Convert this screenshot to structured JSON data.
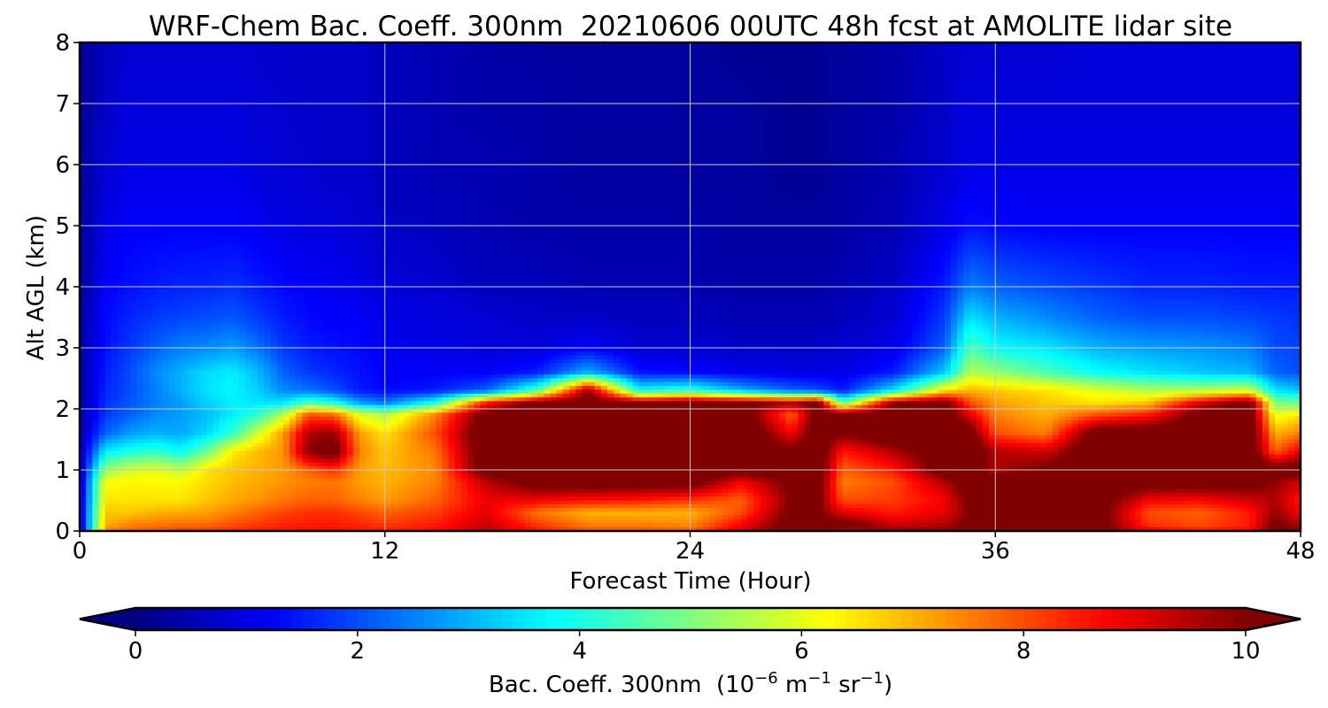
{
  "chart_data": {
    "type": "heatmap",
    "subtype": "filled-contour time-height cross section",
    "title": "WRF-Chem Bac. Coeff. 300nm  20210606 00UTC 48h fcst at AMOLITE lidar site",
    "xlabel": "Forecast Time (Hour)",
    "ylabel": "Alt AGL (km)",
    "xlim": [
      0,
      48
    ],
    "ylim": [
      0,
      8
    ],
    "x_ticks": [
      0,
      12,
      24,
      36,
      48
    ],
    "y_ticks": [
      0,
      1,
      2,
      3,
      4,
      5,
      6,
      7,
      8
    ],
    "grid": true,
    "colormap": "jet",
    "colorbar": {
      "orientation": "horizontal",
      "position": "bottom",
      "vmin": 0,
      "vmax": 10,
      "extend": "both",
      "ticks": [
        0,
        2,
        4,
        6,
        8,
        10
      ],
      "label_main": "Bac. Coeff. 300nm  (10",
      "label_exp1": "−6",
      "label_mid": " m",
      "label_exp2": "−1",
      "label_mid2": " sr",
      "label_exp3": "−1",
      "label_end": ")"
    },
    "z_units_note": "values in 10^-6 m^-1 sr^-1",
    "times": [
      0,
      1,
      2,
      3,
      4,
      5,
      6,
      7,
      8,
      9,
      10,
      11,
      12,
      14,
      16,
      18,
      20,
      22,
      24,
      26,
      28,
      29,
      30,
      32,
      34,
      35,
      36,
      38,
      40,
      42,
      44,
      46,
      47,
      48
    ],
    "altitudes": [
      0,
      0.1,
      0.3,
      0.5,
      0.8,
      1.0,
      1.3,
      1.6,
      1.9,
      2.1,
      2.3,
      2.6,
      3.0,
      3.5,
      4.0,
      5.0,
      6.0,
      7.0,
      8.0
    ],
    "values": [
      [
        0.5,
        0.6,
        0.6,
        0.6,
        0.5,
        0.4,
        0.4,
        0.4,
        0.3,
        0.3,
        0.3,
        0.3,
        0.3,
        0.3,
        0.2,
        0.2,
        0.2,
        0.2,
        0.2
      ],
      [
        7.5,
        7.0,
        6.8,
        6.5,
        6.2,
        5.2,
        3.6,
        2.2,
        1.8,
        1.7,
        1.6,
        1.5,
        1.4,
        1.3,
        1.2,
        1.0,
        0.8,
        0.7,
        0.6
      ],
      [
        7.8,
        7.5,
        6.8,
        6.5,
        6.3,
        5.8,
        4.0,
        2.8,
        2.2,
        2.1,
        2.0,
        2.0,
        1.8,
        1.6,
        1.4,
        1.2,
        1.0,
        0.9,
        0.8
      ],
      [
        8.0,
        7.6,
        7.0,
        6.5,
        6.3,
        6.0,
        4.2,
        3.0,
        2.6,
        2.5,
        2.5,
        2.6,
        2.2,
        1.8,
        1.5,
        1.2,
        1.0,
        0.9,
        0.8
      ],
      [
        8.2,
        7.7,
        7.1,
        6.5,
        6.3,
        5.6,
        3.8,
        2.9,
        2.8,
        2.8,
        3.0,
        3.0,
        2.5,
        1.9,
        1.6,
        1.2,
        1.0,
        0.9,
        0.8
      ],
      [
        8.2,
        7.7,
        7.2,
        6.8,
        6.6,
        6.5,
        4.8,
        3.4,
        3.1,
        3.3,
        3.5,
        3.4,
        2.6,
        2.0,
        1.6,
        1.2,
        1.0,
        0.9,
        0.8
      ],
      [
        8.4,
        8.0,
        7.5,
        7.1,
        6.9,
        6.8,
        6.4,
        4.2,
        3.6,
        3.6,
        3.7,
        3.6,
        2.8,
        2.1,
        1.7,
        1.2,
        1.0,
        0.9,
        0.8
      ],
      [
        8.5,
        8.2,
        7.8,
        7.3,
        7.1,
        7.0,
        6.9,
        5.8,
        4.2,
        3.5,
        3.3,
        3.1,
        2.4,
        1.8,
        1.5,
        1.1,
        0.9,
        0.8,
        0.8
      ],
      [
        8.6,
        8.4,
        8.1,
        7.6,
        7.3,
        7.2,
        7.3,
        7.2,
        5.5,
        3.5,
        2.6,
        2.2,
        1.8,
        1.5,
        1.3,
        1.0,
        0.8,
        0.8,
        0.7
      ],
      [
        8.7,
        8.5,
        8.3,
        7.8,
        7.5,
        7.8,
        9.9,
        9.5,
        8.0,
        4.5,
        2.4,
        1.8,
        1.5,
        1.3,
        1.2,
        0.9,
        0.8,
        0.7,
        0.7
      ],
      [
        8.7,
        8.5,
        8.3,
        7.8,
        7.6,
        8.3,
        10.5,
        9.8,
        7.8,
        4.0,
        2.0,
        1.6,
        1.4,
        1.2,
        1.1,
        0.9,
        0.7,
        0.7,
        0.7
      ],
      [
        8.6,
        8.4,
        8.1,
        7.5,
        7.2,
        7.2,
        7.5,
        7.2,
        6.0,
        2.8,
        1.5,
        1.4,
        1.3,
        1.2,
        1.0,
        0.8,
        0.7,
        0.7,
        0.7
      ],
      [
        8.5,
        8.2,
        7.8,
        7.2,
        7.0,
        6.9,
        6.8,
        6.5,
        5.5,
        2.4,
        1.3,
        1.2,
        1.1,
        1.0,
        0.9,
        0.7,
        0.6,
        0.6,
        0.6
      ],
      [
        8.7,
        8.5,
        8.2,
        7.8,
        7.5,
        7.4,
        7.6,
        8.0,
        7.5,
        4.0,
        1.5,
        1.2,
        1.0,
        0.9,
        0.8,
        0.6,
        0.5,
        0.5,
        0.5
      ],
      [
        9.5,
        9.3,
        9.0,
        8.9,
        9.4,
        10.5,
        10.8,
        10.8,
        10.5,
        8.5,
        2.2,
        1.2,
        0.9,
        0.8,
        0.6,
        0.5,
        0.5,
        0.4,
        0.4
      ],
      [
        8.6,
        8.2,
        7.6,
        8.8,
        10.5,
        10.8,
        11.0,
        11.0,
        10.8,
        10.2,
        4.5,
        1.5,
        0.9,
        0.7,
        0.6,
        0.4,
        0.4,
        0.4,
        0.3
      ],
      [
        8.0,
        7.5,
        7.0,
        8.6,
        10.5,
        10.8,
        11.0,
        11.0,
        10.9,
        10.5,
        9.8,
        3.0,
        1.2,
        0.7,
        0.5,
        0.4,
        0.3,
        0.3,
        0.3
      ],
      [
        8.0,
        7.5,
        7.0,
        8.5,
        10.5,
        10.8,
        11.0,
        11.0,
        10.8,
        10.0,
        3.8,
        1.4,
        0.8,
        0.6,
        0.5,
        0.4,
        0.3,
        0.3,
        0.3
      ],
      [
        7.9,
        7.4,
        7.0,
        8.2,
        10.5,
        10.8,
        11.0,
        11.0,
        10.8,
        10.4,
        4.2,
        1.3,
        0.8,
        0.6,
        0.5,
        0.4,
        0.3,
        0.3,
        0.3
      ],
      [
        9.2,
        8.8,
        8.0,
        7.8,
        8.8,
        10.5,
        11.0,
        11.0,
        10.7,
        10.2,
        3.0,
        1.1,
        0.7,
        0.5,
        0.4,
        0.3,
        0.3,
        0.3,
        0.2
      ],
      [
        10.5,
        10.4,
        10.2,
        10.0,
        10.2,
        10.5,
        10.2,
        8.8,
        7.8,
        9.5,
        2.2,
        1.0,
        0.7,
        0.5,
        0.4,
        0.3,
        0.2,
        0.2,
        0.2
      ],
      [
        10.5,
        10.4,
        10.2,
        10.2,
        10.5,
        10.8,
        10.8,
        10.6,
        10.4,
        10.3,
        2.0,
        1.0,
        0.7,
        0.5,
        0.4,
        0.3,
        0.2,
        0.2,
        0.2
      ],
      [
        9.5,
        10.5,
        9.0,
        8.0,
        7.5,
        7.8,
        8.5,
        10.0,
        10.5,
        4.5,
        1.5,
        1.0,
        0.8,
        0.6,
        0.5,
        0.4,
        0.3,
        0.3,
        0.3
      ],
      [
        10.0,
        9.2,
        8.5,
        8.2,
        8.0,
        8.5,
        9.5,
        10.8,
        10.8,
        9.8,
        3.5,
        1.5,
        1.0,
        0.8,
        0.7,
        0.5,
        0.5,
        0.4,
        0.4
      ],
      [
        10.0,
        9.5,
        9.0,
        8.8,
        9.5,
        10.5,
        10.8,
        10.8,
        10.6,
        10.3,
        6.5,
        3.2,
        2.2,
        1.8,
        1.5,
        1.0,
        0.8,
        0.7,
        0.7
      ],
      [
        10.5,
        10.2,
        10.0,
        10.2,
        10.5,
        10.7,
        10.8,
        10.5,
        9.0,
        8.0,
        7.0,
        5.5,
        4.5,
        3.5,
        2.5,
        1.4,
        1.0,
        0.9,
        0.8
      ],
      [
        10.5,
        10.5,
        10.5,
        10.6,
        10.5,
        9.5,
        9.5,
        8.0,
        7.5,
        7.2,
        6.8,
        5.2,
        3.8,
        3.0,
        2.2,
        1.3,
        1.0,
        0.9,
        0.8
      ],
      [
        10.5,
        10.5,
        10.5,
        10.6,
        10.5,
        10.2,
        9.2,
        7.5,
        7.0,
        6.8,
        6.5,
        4.5,
        3.5,
        2.6,
        2.0,
        1.2,
        1.0,
        0.9,
        0.8
      ],
      [
        10.5,
        10.5,
        10.5,
        10.6,
        10.8,
        10.9,
        10.8,
        10.6,
        8.0,
        6.5,
        6.0,
        3.8,
        3.0,
        2.2,
        1.8,
        1.2,
        1.0,
        0.9,
        0.9
      ],
      [
        9.0,
        8.3,
        8.0,
        8.8,
        10.5,
        10.8,
        10.8,
        10.7,
        8.5,
        6.8,
        5.5,
        3.5,
        2.8,
        2.0,
        1.6,
        1.2,
        1.0,
        0.9,
        0.9
      ],
      [
        8.5,
        8.0,
        7.8,
        8.7,
        10.5,
        10.8,
        10.8,
        10.8,
        10.4,
        9.0,
        5.5,
        3.2,
        2.7,
        2.0,
        1.6,
        1.2,
        1.0,
        0.9,
        0.9
      ],
      [
        8.8,
        8.5,
        8.5,
        9.2,
        10.4,
        10.7,
        10.8,
        10.8,
        10.6,
        10.3,
        5.8,
        3.0,
        2.5,
        1.9,
        1.5,
        1.2,
        1.0,
        0.9,
        0.9
      ],
      [
        10.5,
        10.2,
        9.8,
        9.5,
        9.8,
        10.5,
        7.8,
        7.0,
        6.0,
        5.0,
        3.5,
        2.2,
        2.0,
        1.8,
        1.5,
        1.2,
        1.0,
        0.9,
        0.9
      ],
      [
        10.2,
        9.5,
        8.8,
        8.5,
        9.2,
        10.5,
        9.0,
        7.5,
        6.5,
        4.8,
        3.2,
        2.0,
        1.9,
        1.7,
        1.5,
        1.2,
        1.0,
        0.9,
        0.9
      ]
    ]
  }
}
